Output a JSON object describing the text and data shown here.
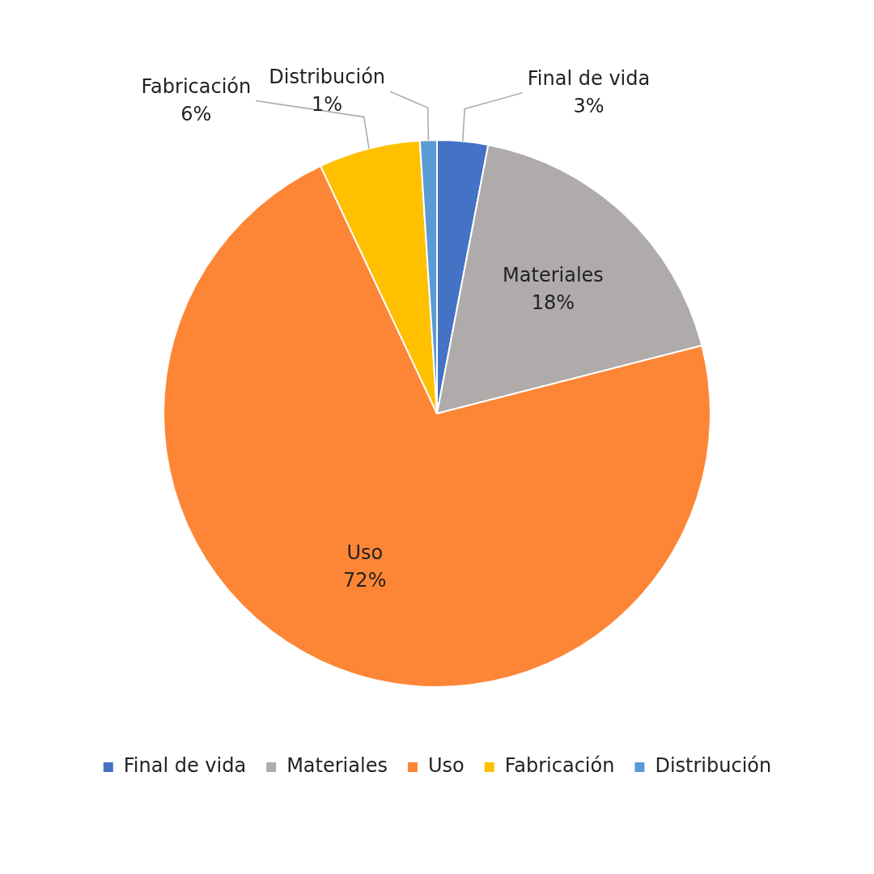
{
  "chart_data": {
    "type": "pie",
    "categories": [
      "Final de vida",
      "Materiales",
      "Uso",
      "Fabricación",
      "Distribución"
    ],
    "values": [
      3,
      18,
      72,
      6,
      1
    ],
    "value_labels": [
      "3%",
      "18%",
      "72%",
      "6%",
      "1%"
    ],
    "colors": [
      "#4472c4",
      "#afabab",
      "#fd8636",
      "#ffc000",
      "#5b9bd5"
    ],
    "legend": "bottom"
  }
}
